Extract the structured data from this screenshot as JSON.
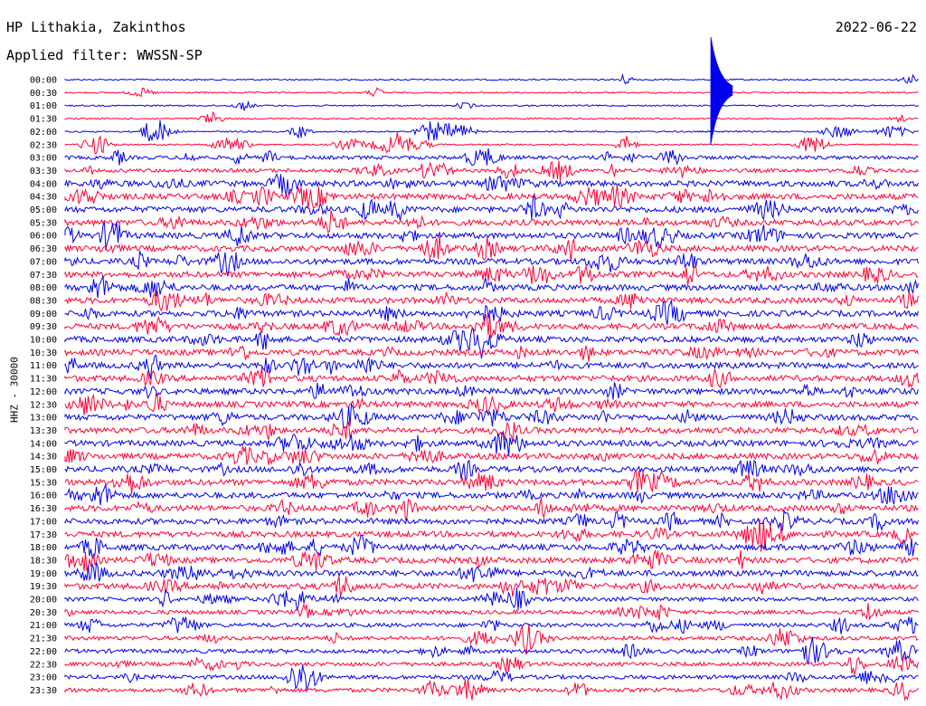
{
  "header": {
    "station": "HP Lithakia, Zakinthos",
    "filter": "Applied filter: WWSSN-SP",
    "date": "2022-06-22"
  },
  "chart_data": {
    "type": "line",
    "ylabel": "HHZ - 30000",
    "row_labels": [
      "00:00",
      "00:30",
      "01:00",
      "01:30",
      "02:00",
      "02:30",
      "03:00",
      "03:30",
      "04:00",
      "04:30",
      "05:00",
      "05:30",
      "06:00",
      "06:30",
      "07:00",
      "07:30",
      "08:00",
      "08:30",
      "09:00",
      "09:30",
      "10:00",
      "10:30",
      "11:00",
      "11:30",
      "12:00",
      "12:30",
      "13:00",
      "13:30",
      "14:00",
      "14:30",
      "15:00",
      "15:30",
      "16:00",
      "16:30",
      "17:00",
      "17:30",
      "18:00",
      "18:30",
      "19:00",
      "19:30",
      "20:00",
      "20:30",
      "21:00",
      "21:30",
      "22:00",
      "22:30",
      "23:00",
      "23:30"
    ],
    "series_colors": [
      "#0000ee",
      "#ff0033"
    ],
    "grid": false
  }
}
